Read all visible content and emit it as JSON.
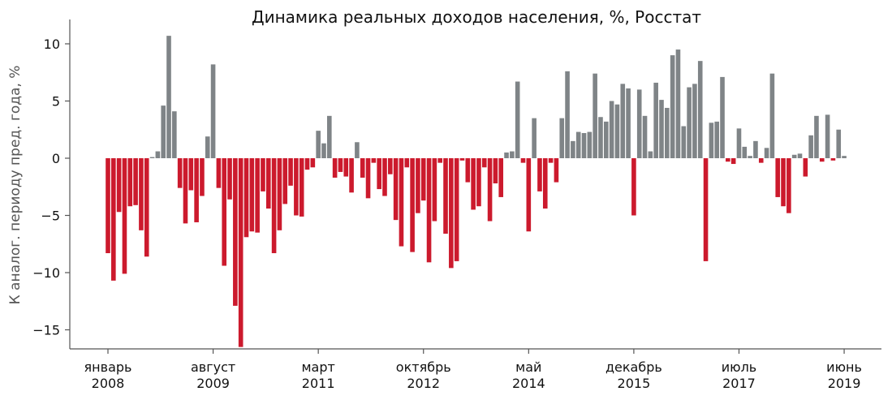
{
  "chart_data": {
    "type": "bar",
    "title": "Динамика реальных доходов населения, %, Росстат",
    "ylabel": "К аналог. периоду пред. года, %",
    "xlabel": "",
    "ylim": [
      -16.5,
      12
    ],
    "yticks": [
      10,
      5,
      0,
      -5,
      -10,
      -15
    ],
    "ytick_labels": [
      "10",
      "5",
      "0",
      "−5",
      "−10",
      "−15"
    ],
    "xticks": [
      {
        "index": 0,
        "label_top": "январь",
        "label_bottom": "2008"
      },
      {
        "index": 19,
        "label_top": "август",
        "label_bottom": "2009"
      },
      {
        "index": 38,
        "label_top": "март",
        "label_bottom": "2011"
      },
      {
        "index": 57,
        "label_top": "октябрь",
        "label_bottom": "2012"
      },
      {
        "index": 76,
        "label_top": "май",
        "label_bottom": "2014"
      },
      {
        "index": 95,
        "label_top": "декабрь",
        "label_bottom": "2015"
      },
      {
        "index": 114,
        "label_top": "июль",
        "label_bottom": "2017"
      },
      {
        "index": 133,
        "label_top": "июнь",
        "label_bottom": "2019"
      }
    ],
    "colors": {
      "positive": "#7f8487",
      "negative": "#cc1a2d",
      "axis": "#555555"
    },
    "grid": false,
    "legend": "none",
    "values": [
      -8.3,
      -10.7,
      -4.7,
      -10.1,
      -4.2,
      -4.1,
      -6.3,
      -8.6,
      0.1,
      0.6,
      4.6,
      10.7,
      4.1,
      -2.6,
      -5.7,
      -2.8,
      -5.6,
      -3.3,
      1.9,
      8.2,
      -2.6,
      -9.4,
      -3.6,
      -12.9,
      -16.6,
      -6.9,
      -6.4,
      -6.5,
      -2.9,
      -4.4,
      -8.3,
      -6.3,
      -4.0,
      -2.4,
      -5.0,
      -5.1,
      -1.0,
      -0.8,
      2.4,
      1.3,
      3.7,
      -1.7,
      -1.2,
      -1.6,
      -3.0,
      1.4,
      -1.7,
      -3.5,
      -0.4,
      -2.7,
      -3.3,
      -1.4,
      -5.4,
      -7.7,
      -0.8,
      -8.2,
      -4.8,
      -3.7,
      -9.1,
      -5.5,
      -0.4,
      -6.6,
      -9.6,
      -9.0,
      -0.2,
      -2.1,
      -4.5,
      -4.2,
      -0.8,
      -5.5,
      -2.2,
      -3.4,
      0.5,
      0.6,
      6.7,
      -0.4,
      -6.4,
      3.5,
      -2.9,
      -4.4,
      -0.4,
      -2.1,
      3.5,
      7.6,
      1.5,
      2.3,
      2.2,
      2.3,
      7.4,
      3.6,
      3.2,
      5.0,
      4.7,
      6.5,
      6.1,
      -5.0,
      6.0,
      3.7,
      0.6,
      6.6,
      5.1,
      4.4,
      9.0,
      9.5,
      2.8,
      6.2,
      6.5,
      8.5,
      -9.0,
      3.1,
      3.2,
      7.1,
      -0.3,
      -0.5,
      2.6,
      1.0,
      0.2,
      1.5,
      -0.4,
      0.9,
      7.4,
      -3.4,
      -4.2,
      -4.8,
      0.3,
      0.4,
      -1.6,
      2.0,
      3.7,
      -0.3,
      3.8,
      -0.2,
      2.5,
      0.2
    ]
  }
}
